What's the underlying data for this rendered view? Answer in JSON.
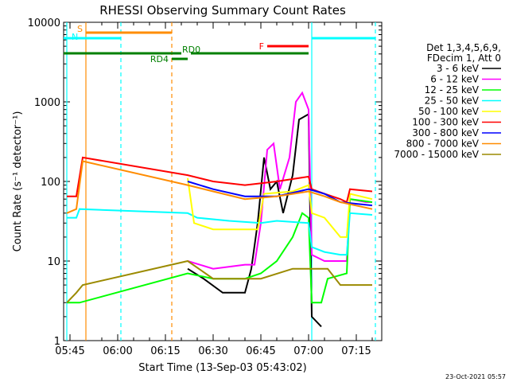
{
  "chart_data": {
    "type": "line",
    "title": "RHESSI Observing Summary Count Rates",
    "xlabel": "Start Time (13-Sep-03 05:43:02)",
    "ylabel": "Count Rate (s⁻¹ detector⁻¹)",
    "yscale": "log",
    "ylim": [
      1,
      10000
    ],
    "xlim": [
      "05:43",
      "07:23"
    ],
    "xticks": [
      "05:45",
      "06:00",
      "06:15",
      "06:30",
      "06:45",
      "07:00",
      "07:15"
    ],
    "yticks": [
      "1",
      "10",
      "100",
      "1000",
      "10000"
    ],
    "legend_header": [
      "Det 1,3,4,5,6,9,",
      "FDecim 1, Att 0"
    ],
    "series": [
      {
        "name": "3 - 6 keV",
        "color": "#000000",
        "points": [
          [
            "06:22",
            8
          ],
          [
            "06:27",
            6
          ],
          [
            "06:33",
            4
          ],
          [
            "06:40",
            4
          ],
          [
            "06:42",
            8
          ],
          [
            "06:44",
            30
          ],
          [
            "06:46",
            200
          ],
          [
            "06:48",
            80
          ],
          [
            "06:50",
            100
          ],
          [
            "06:52",
            40
          ],
          [
            "06:55",
            120
          ],
          [
            "06:57",
            600
          ],
          [
            "07:00",
            700
          ],
          [
            "07:01",
            2
          ],
          [
            "07:04",
            1.5
          ]
        ]
      },
      {
        "name": "6 - 12 keV",
        "color": "#ff00ff",
        "points": [
          [
            "06:22",
            10
          ],
          [
            "06:30",
            8
          ],
          [
            "06:40",
            9
          ],
          [
            "06:43",
            9
          ],
          [
            "06:45",
            30
          ],
          [
            "06:47",
            250
          ],
          [
            "06:49",
            300
          ],
          [
            "06:51",
            80
          ],
          [
            "06:54",
            200
          ],
          [
            "06:56",
            1000
          ],
          [
            "06:58",
            1300
          ],
          [
            "07:00",
            800
          ],
          [
            "07:01",
            12
          ],
          [
            "07:05",
            10
          ],
          [
            "07:09",
            10
          ],
          [
            "07:12",
            10
          ],
          [
            "07:13",
            60
          ],
          [
            "07:18",
            55
          ],
          [
            "07:20",
            55
          ]
        ]
      },
      {
        "name": "12 - 25 keV",
        "color": "#00ff00",
        "points": [
          [
            "05:44",
            3
          ],
          [
            "05:48",
            3
          ],
          [
            "05:48",
            3
          ],
          [
            "06:22",
            7
          ],
          [
            "06:30",
            6
          ],
          [
            "06:40",
            6
          ],
          [
            "06:45",
            7
          ],
          [
            "06:50",
            10
          ],
          [
            "06:55",
            20
          ],
          [
            "06:58",
            40
          ],
          [
            "07:00",
            35
          ],
          [
            "07:01",
            3
          ],
          [
            "07:04",
            3
          ],
          [
            "07:06",
            6
          ],
          [
            "07:12",
            7
          ],
          [
            "07:13",
            60
          ],
          [
            "07:20",
            55
          ]
        ]
      },
      {
        "name": "25 - 50 keV",
        "color": "#00ffff",
        "points": [
          [
            "05:44",
            35
          ],
          [
            "05:47",
            35
          ],
          [
            "05:48",
            45
          ],
          [
            "06:22",
            40
          ],
          [
            "06:25",
            35
          ],
          [
            "06:35",
            32
          ],
          [
            "06:45",
            30
          ],
          [
            "06:50",
            32
          ],
          [
            "07:00",
            30
          ],
          [
            "07:01",
            15
          ],
          [
            "07:05",
            13
          ],
          [
            "07:10",
            12
          ],
          [
            "07:12",
            12
          ],
          [
            "07:13",
            40
          ],
          [
            "07:20",
            38
          ]
        ]
      },
      {
        "name": "50 - 100 keV",
        "color": "#ffff00",
        "points": [
          [
            "06:22",
            110
          ],
          [
            "06:24",
            30
          ],
          [
            "06:30",
            25
          ],
          [
            "06:40",
            25
          ],
          [
            "06:44",
            25
          ],
          [
            "06:46",
            70
          ],
          [
            "06:55",
            75
          ],
          [
            "07:00",
            90
          ],
          [
            "07:01",
            40
          ],
          [
            "07:05",
            35
          ],
          [
            "07:10",
            20
          ],
          [
            "07:12",
            20
          ],
          [
            "07:13",
            70
          ],
          [
            "07:20",
            60
          ]
        ]
      },
      {
        "name": "100 - 300 keV",
        "color": "#ff0000",
        "points": [
          [
            "05:44",
            65
          ],
          [
            "05:47",
            65
          ],
          [
            "05:49",
            200
          ],
          [
            "06:22",
            120
          ],
          [
            "06:30",
            100
          ],
          [
            "06:40",
            90
          ],
          [
            "06:50",
            100
          ],
          [
            "07:00",
            115
          ],
          [
            "07:01",
            80
          ],
          [
            "07:05",
            70
          ],
          [
            "07:10",
            60
          ],
          [
            "07:12",
            55
          ],
          [
            "07:13",
            80
          ],
          [
            "07:20",
            75
          ]
        ]
      },
      {
        "name": "300 - 800 keV",
        "color": "#0000ff",
        "points": [
          [
            "06:22",
            100
          ],
          [
            "06:30",
            80
          ],
          [
            "06:40",
            65
          ],
          [
            "06:50",
            65
          ],
          [
            "07:00",
            80
          ],
          [
            "07:05",
            70
          ],
          [
            "07:10",
            55
          ],
          [
            "07:20",
            50
          ]
        ]
      },
      {
        "name": "800 - 7000 keV",
        "color": "#ff8c00",
        "points": [
          [
            "05:44",
            40
          ],
          [
            "05:47",
            45
          ],
          [
            "05:49",
            180
          ],
          [
            "06:22",
            90
          ],
          [
            "06:30",
            75
          ],
          [
            "06:40",
            60
          ],
          [
            "06:50",
            65
          ],
          [
            "07:00",
            75
          ],
          [
            "07:05",
            65
          ],
          [
            "07:10",
            55
          ],
          [
            "07:20",
            45
          ]
        ]
      },
      {
        "name": "7000 - 15000 keV",
        "color": "#9b8a00",
        "points": [
          [
            "05:44",
            3
          ],
          [
            "05:47",
            4
          ],
          [
            "05:49",
            5
          ],
          [
            "06:22",
            10
          ],
          [
            "06:30",
            6
          ],
          [
            "06:40",
            6
          ],
          [
            "06:45",
            6
          ],
          [
            "06:55",
            8
          ],
          [
            "07:00",
            8
          ],
          [
            "07:06",
            8
          ],
          [
            "07:10",
            5
          ],
          [
            "07:20",
            5
          ]
        ]
      }
    ],
    "annotations": {
      "vlines": [
        {
          "time": "05:50",
          "color": "#ff8c00",
          "style": "solid"
        },
        {
          "time": "05:44",
          "color": "#00ffff",
          "style": "solid"
        },
        {
          "time": "06:01",
          "color": "#00ffff",
          "style": "dashed"
        },
        {
          "time": "06:17",
          "color": "#ff8c00",
          "style": "dashed"
        },
        {
          "time": "07:01",
          "color": "#00ffff",
          "style": "solid"
        },
        {
          "time": "07:21",
          "color": "#00ffff",
          "style": "dashed"
        }
      ],
      "bars": [
        {
          "label": "S",
          "color": "#ff8c00",
          "start": "05:50",
          "end": "06:17",
          "level": "top"
        },
        {
          "label": "N",
          "color": "#00ffff",
          "start": "05:43",
          "end": "06:01",
          "level": "upper"
        },
        {
          "label": "N",
          "color": "#00ffff",
          "start": "07:01",
          "end": "07:21",
          "level": "upper"
        },
        {
          "label": "F",
          "color": "#ff0000",
          "start": "06:47",
          "end": "07:00",
          "level": "mid"
        },
        {
          "label": "RD0",
          "color": "#008000",
          "start": "05:43",
          "end": "06:20",
          "level": "green-upper"
        },
        {
          "label": "RD0",
          "color": "#008000",
          "start": "06:23",
          "end": "07:00",
          "level": "green-upper"
        },
        {
          "label": "RD4",
          "color": "#008000",
          "start": "06:17",
          "end": "06:22",
          "level": "green-lower"
        }
      ],
      "bar_labels": [
        "S",
        "N",
        "F",
        "RD0",
        "RD4"
      ]
    },
    "footer_date": "23-Oct-2021 05:57"
  }
}
